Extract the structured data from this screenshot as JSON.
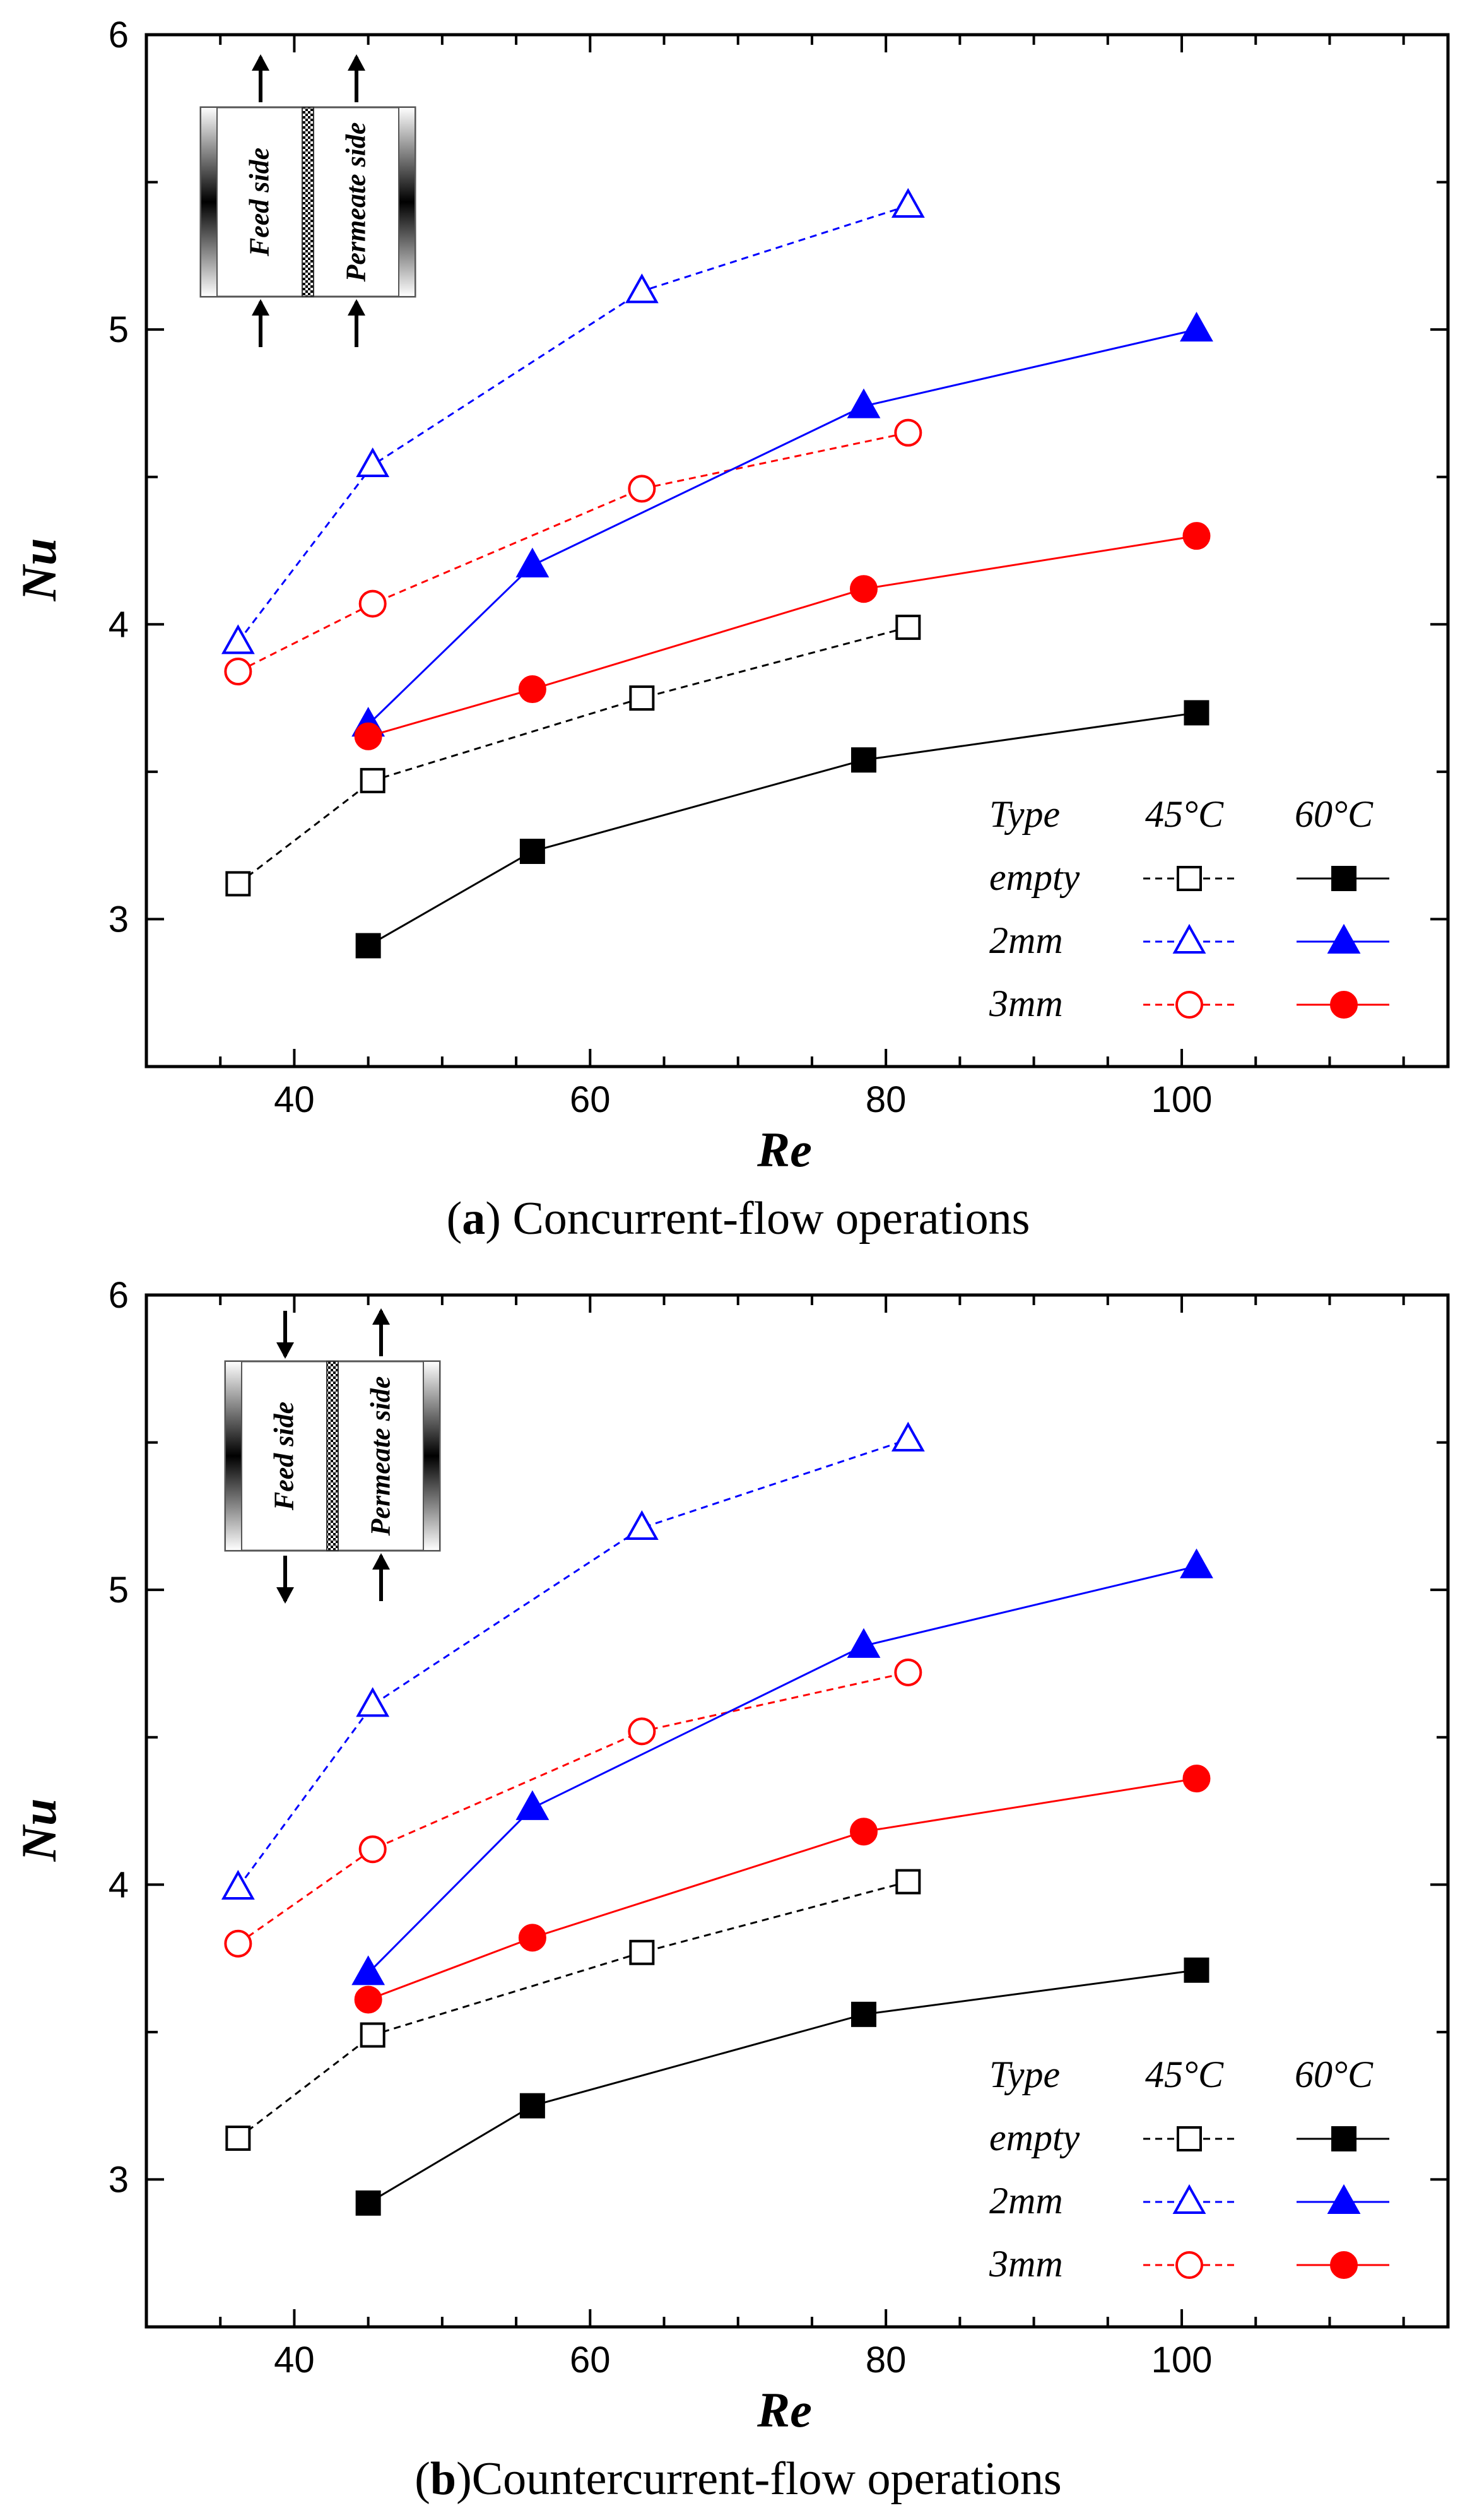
{
  "chart_data": [
    {
      "type": "line",
      "title": "",
      "caption_letter": "a",
      "caption_text": " Concurrent-flow operations",
      "xlabel": "Re",
      "ylabel": "Nu",
      "xlim": [
        30,
        118
      ],
      "ylim": [
        2.5,
        6.0
      ],
      "xticks": [
        40,
        60,
        80,
        100
      ],
      "yticks": [
        3,
        4,
        5,
        6
      ],
      "inset": {
        "feed_label": "Feed side",
        "permeate_label": "Permeate side",
        "flow": "concurrent"
      },
      "legend": {
        "header": "Type",
        "col45": "45°C",
        "col60": "60°C"
      },
      "series": [
        {
          "name": "empty 45°C",
          "label": "empty",
          "color": "#000000",
          "marker": "square",
          "filled": false,
          "dashed": true,
          "x": [
            36.2,
            45.3,
            63.5,
            81.5
          ],
          "y": [
            3.12,
            3.47,
            3.75,
            3.99
          ]
        },
        {
          "name": "2mm 45°C",
          "label": "2mm",
          "color": "#0000ff",
          "marker": "triangle",
          "filled": false,
          "dashed": true,
          "x": [
            36.2,
            45.3,
            63.5,
            81.5
          ],
          "y": [
            3.94,
            4.54,
            5.13,
            5.42
          ]
        },
        {
          "name": "3mm 45°C",
          "label": "3mm",
          "color": "#ff0000",
          "marker": "circle",
          "filled": false,
          "dashed": true,
          "x": [
            36.2,
            45.3,
            63.5,
            81.5
          ],
          "y": [
            3.84,
            4.07,
            4.46,
            4.65
          ]
        },
        {
          "name": "empty 60°C",
          "label": "empty",
          "color": "#000000",
          "marker": "square",
          "filled": true,
          "dashed": false,
          "x": [
            45.0,
            56.1,
            78.5,
            101.0
          ],
          "y": [
            2.91,
            3.23,
            3.54,
            3.7
          ]
        },
        {
          "name": "2mm 60°C",
          "label": "2mm",
          "color": "#0000ff",
          "marker": "triangle",
          "filled": true,
          "dashed": false,
          "x": [
            45.0,
            56.1,
            78.5,
            101.0
          ],
          "y": [
            3.66,
            4.2,
            4.74,
            5.0
          ]
        },
        {
          "name": "3mm 60°C",
          "label": "3mm",
          "color": "#ff0000",
          "marker": "circle",
          "filled": true,
          "dashed": false,
          "x": [
            45.0,
            56.1,
            78.5,
            101.0
          ],
          "y": [
            3.62,
            3.78,
            4.12,
            4.3
          ]
        }
      ]
    },
    {
      "type": "line",
      "title": "",
      "caption_letter": "b",
      "caption_text": "Countercurrent-flow operations",
      "xlabel": "Re",
      "ylabel": "Nu",
      "xlim": [
        30,
        118
      ],
      "ylim": [
        2.5,
        6.0
      ],
      "xticks": [
        40,
        60,
        80,
        100
      ],
      "yticks": [
        3,
        4,
        5,
        6
      ],
      "inset": {
        "feed_label": "Feed side",
        "permeate_label": "Permeate side",
        "flow": "countercurrent"
      },
      "legend": {
        "header": "Type",
        "col45": "45°C",
        "col60": "60°C"
      },
      "series": [
        {
          "name": "empty 45°C",
          "label": "empty",
          "color": "#000000",
          "marker": "square",
          "filled": false,
          "dashed": true,
          "x": [
            36.2,
            45.3,
            63.5,
            81.5
          ],
          "y": [
            3.14,
            3.49,
            3.77,
            4.01
          ]
        },
        {
          "name": "2mm 45°C",
          "label": "2mm",
          "color": "#0000ff",
          "marker": "triangle",
          "filled": false,
          "dashed": true,
          "x": [
            36.2,
            45.3,
            63.5,
            81.5
          ],
          "y": [
            3.99,
            4.61,
            5.21,
            5.51
          ]
        },
        {
          "name": "3mm 45°C",
          "label": "3mm",
          "color": "#ff0000",
          "marker": "circle",
          "filled": false,
          "dashed": true,
          "x": [
            36.2,
            45.3,
            63.5,
            81.5
          ],
          "y": [
            3.8,
            4.12,
            4.52,
            4.72
          ]
        },
        {
          "name": "empty 60°C",
          "label": "empty",
          "color": "#000000",
          "marker": "square",
          "filled": true,
          "dashed": false,
          "x": [
            45.0,
            56.1,
            78.5,
            101.0
          ],
          "y": [
            2.92,
            3.25,
            3.56,
            3.71
          ]
        },
        {
          "name": "2mm 60°C",
          "label": "2mm",
          "color": "#0000ff",
          "marker": "triangle",
          "filled": true,
          "dashed": false,
          "x": [
            45.0,
            56.1,
            78.5,
            101.0
          ],
          "y": [
            3.7,
            4.26,
            4.81,
            5.08
          ]
        },
        {
          "name": "3mm 60°C",
          "label": "3mm",
          "color": "#ff0000",
          "marker": "circle",
          "filled": true,
          "dashed": false,
          "x": [
            45.0,
            56.1,
            78.5,
            101.0
          ],
          "y": [
            3.61,
            3.82,
            4.18,
            4.36
          ]
        }
      ]
    }
  ]
}
